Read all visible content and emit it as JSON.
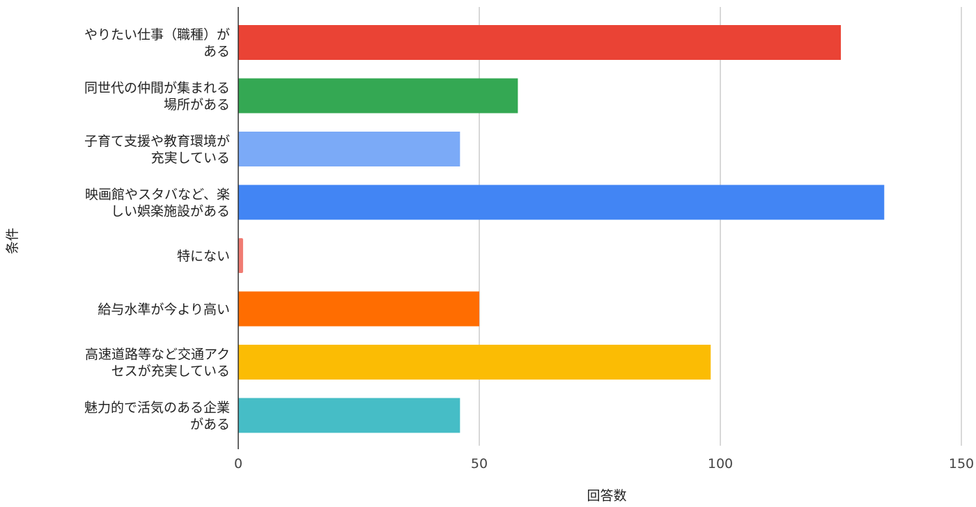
{
  "chart_data": {
    "type": "bar",
    "orientation": "horizontal",
    "title": "",
    "xlabel": "回答数",
    "ylabel": "条件",
    "xlim": [
      0,
      150
    ],
    "x_ticks": [
      0,
      50,
      100,
      150
    ],
    "grid": "vertical",
    "legend": "none",
    "categories": [
      {
        "lines": [
          "やりたい仕事（職種）が",
          "ある"
        ],
        "value": 125,
        "color": "#EA4335"
      },
      {
        "lines": [
          "同世代の仲間が集まれる",
          "場所がある"
        ],
        "value": 58,
        "color": "#34A853"
      },
      {
        "lines": [
          "子育て支援や教育環境が",
          "充実している"
        ],
        "value": 46,
        "color": "#7BAAF7"
      },
      {
        "lines": [
          "映画館やスタバなど、楽",
          "しい娯楽施設がある"
        ],
        "value": 134,
        "color": "#4285F4"
      },
      {
        "lines": [
          "特にない"
        ],
        "value": 1,
        "color": "#F07B72"
      },
      {
        "lines": [
          "給与水準が今より高い"
        ],
        "value": 50,
        "color": "#FF6D01"
      },
      {
        "lines": [
          "高速道路等など交通アク",
          "セスが充実している"
        ],
        "value": 98,
        "color": "#FBBC04"
      },
      {
        "lines": [
          "魅力的で活気のある企業",
          "がある"
        ],
        "value": 46,
        "color": "#46BDC6"
      }
    ]
  }
}
